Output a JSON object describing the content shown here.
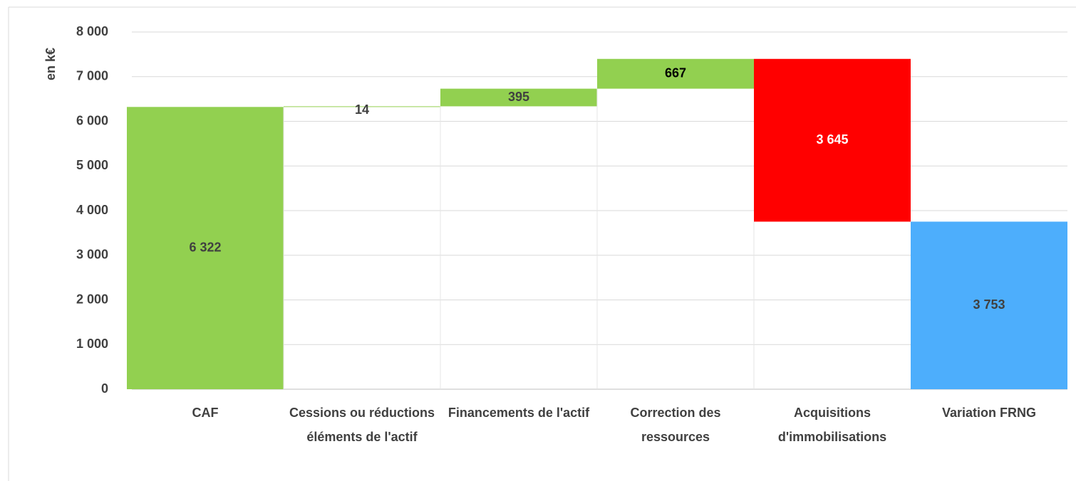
{
  "chart_data": {
    "type": "waterfall",
    "y_axis_label": "en k€",
    "categories": [
      "CAF",
      "Cessions ou réductions éléments de l'actif",
      "Financements de l'actif",
      "Correction des ressources",
      "Acquisitions d'immobilisations",
      "Variation FRNG"
    ],
    "values": [
      6322,
      14,
      395,
      667,
      -3645,
      3753
    ],
    "value_labels": [
      "6 322",
      "14",
      "395",
      "667",
      "3 645",
      "3 753"
    ],
    "measure": [
      "absolute",
      "relative",
      "relative",
      "relative",
      "relative",
      "total"
    ],
    "colors": [
      "#92d050",
      "#92d050",
      "#92d050",
      "#92d050",
      "#ff0000",
      "#4daefc"
    ],
    "ylim": [
      0,
      8000
    ],
    "yticks": [
      0,
      {
        "value": 1000,
        "label": "1 000"
      },
      {
        "value": 2000,
        "label": "2 000"
      },
      {
        "value": 3000,
        "label": "3 000"
      },
      {
        "value": 4000,
        "label": "4 000"
      },
      {
        "value": 5000,
        "label": "5 000"
      },
      {
        "value": 6000,
        "label": "6 000"
      },
      {
        "value": 7000,
        "label": "7 000"
      },
      {
        "value": 8000,
        "label": "8 000"
      }
    ],
    "grid": true
  }
}
